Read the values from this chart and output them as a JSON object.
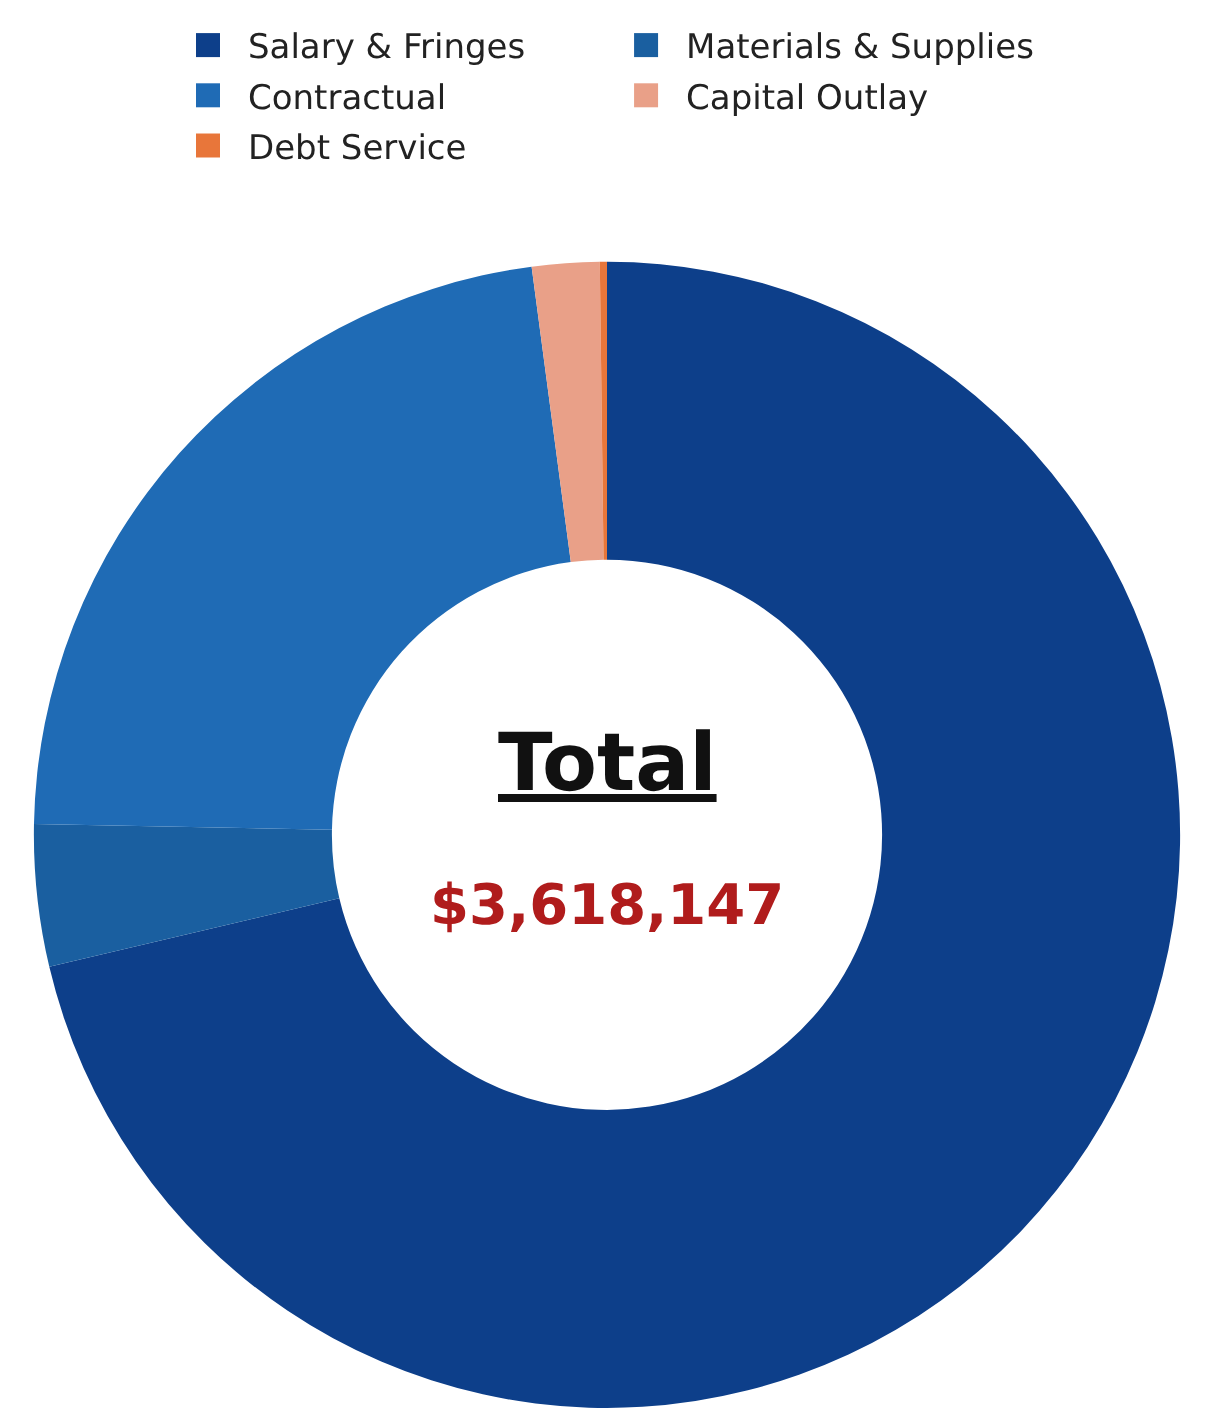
{
  "chart_data": {
    "type": "donut",
    "categories": [
      "Salary & Fringes",
      "Materials & Supplies",
      "Contractual",
      "Capital Outlay",
      "Debt Service"
    ],
    "values": [
      71.3,
      4.0,
      22.6,
      1.9,
      0.2
    ],
    "colors": [
      "#0d3f8a",
      "#1a5fa0",
      "#1f6bb5",
      "#e9a088",
      "#e8763a"
    ],
    "annotations": [
      "Total",
      "$3,618,147"
    ],
    "legend": "top"
  }
}
